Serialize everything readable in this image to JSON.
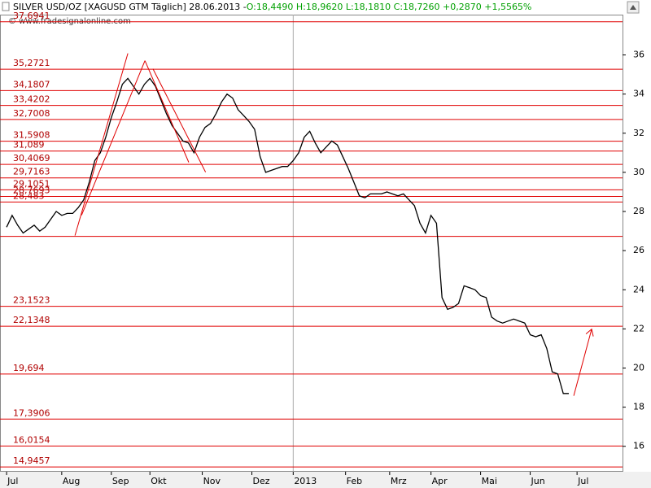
{
  "chart_data": {
    "type": "line",
    "title": "SILVER USD/OZ [XAGUSD GTM  Täglich] 28.06.2013 - ",
    "subtitle": "O:18,4490 H:18,9620 L:18,1810 C:18,7260 +0,2870 +1,5565%",
    "watermark": "© www.fradesignalonline.com",
    "color": "#000000",
    "level_color": "#e00000",
    "x": [
      0,
      2,
      4,
      6,
      8,
      10,
      12,
      14,
      16,
      18,
      20,
      22,
      24,
      26,
      28,
      30,
      32,
      34,
      36,
      38,
      40,
      42,
      44,
      46,
      48,
      50,
      52,
      54,
      56,
      58,
      60,
      62,
      64,
      66,
      68,
      70,
      72,
      74,
      76,
      78,
      80,
      82,
      84,
      86,
      88,
      90,
      92,
      94,
      96,
      98,
      100,
      102,
      104,
      106,
      108,
      110,
      112,
      114,
      116,
      118,
      120,
      122,
      124,
      126,
      128,
      130,
      132,
      134,
      136,
      138,
      140,
      142,
      144,
      146,
      148,
      150,
      152,
      154,
      156,
      158,
      160,
      162,
      164,
      166,
      168,
      170,
      172,
      174,
      176,
      178,
      180,
      182,
      184,
      186,
      188,
      190,
      192,
      194,
      196,
      198,
      200,
      202,
      204
    ],
    "values": [
      27.2,
      27.8,
      27.3,
      26.9,
      27.1,
      27.3,
      27.0,
      27.2,
      27.6,
      28.0,
      27.8,
      27.9,
      27.9,
      28.2,
      28.6,
      29.5,
      30.6,
      31.0,
      31.8,
      32.8,
      33.6,
      34.5,
      34.8,
      34.4,
      34.0,
      34.5,
      34.8,
      34.4,
      33.7,
      33.0,
      32.4,
      32.0,
      31.6,
      31.5,
      31.0,
      31.8,
      32.3,
      32.5,
      33.0,
      33.6,
      34.0,
      33.8,
      33.2,
      32.9,
      32.6,
      32.2,
      30.8,
      30.0,
      30.1,
      30.2,
      30.3,
      30.3,
      30.6,
      31.0,
      31.8,
      32.1,
      31.5,
      31.0,
      31.3,
      31.6,
      31.4,
      30.8,
      30.2,
      29.5,
      28.8,
      28.7,
      28.9,
      28.9,
      28.9,
      29.0,
      28.9,
      28.8,
      28.9,
      28.6,
      28.3,
      27.4,
      26.9,
      27.8,
      27.4,
      23.6,
      23.0,
      23.1,
      23.3,
      24.2,
      24.1,
      24.0,
      23.7,
      23.6,
      22.6,
      22.4,
      22.3,
      22.4,
      22.5,
      22.4,
      22.3,
      21.7,
      21.6,
      21.7,
      21.0,
      19.8,
      19.7,
      18.7,
      18.7
    ],
    "xlim": [
      -2.4,
      223.5
    ],
    "xticks": [
      {
        "value": 0,
        "label": "Jul"
      },
      {
        "value": 20,
        "label": "Aug"
      },
      {
        "value": 38,
        "label": "Sep"
      },
      {
        "value": 52,
        "label": "Okt"
      },
      {
        "value": 71,
        "label": "Nov"
      },
      {
        "value": 89,
        "label": "Dez"
      },
      {
        "value": 104,
        "label": "2013"
      },
      {
        "value": 123,
        "label": "Feb"
      },
      {
        "value": 139,
        "label": "Mrz"
      },
      {
        "value": 154,
        "label": "Apr"
      },
      {
        "value": 172,
        "label": "Mai"
      },
      {
        "value": 190,
        "label": "Jun"
      },
      {
        "value": 207,
        "label": "Jul"
      }
    ],
    "ylim": [
      14.7,
      38.6
    ],
    "yticks": [
      16,
      18,
      20,
      22,
      24,
      26,
      28,
      30,
      32,
      34,
      36
    ],
    "levels": [
      {
        "value": 37.6941,
        "label": "37,6941"
      },
      {
        "value": 35.2721,
        "label": "35,2721"
      },
      {
        "value": 34.1807,
        "label": "34,1807"
      },
      {
        "value": 33.4202,
        "label": "33,4202"
      },
      {
        "value": 32.7008,
        "label": "32,7008"
      },
      {
        "value": 31.5908,
        "label": "31,5908"
      },
      {
        "value": 31.089,
        "label": "31,089"
      },
      {
        "value": 30.4069,
        "label": "30,4069"
      },
      {
        "value": 29.7163,
        "label": "29,7163"
      },
      {
        "value": 29.1051,
        "label": "29,1051"
      },
      {
        "value": 28.7693,
        "label": "28,7693"
      },
      {
        "value": 28.483,
        "label": "28,483"
      },
      26.73,
      {
        "value": 23.1523,
        "label": "23,1523"
      },
      {
        "value": 22.1348,
        "label": "22,1348"
      },
      {
        "value": 19.694,
        "label": "19,694"
      },
      {
        "value": 17.3906,
        "label": "17,3906"
      },
      {
        "value": 16.0154,
        "label": "16,0154"
      },
      {
        "value": 14.9457,
        "label": "14,9457"
      }
    ],
    "trend_lines": [
      {
        "x": [
          24.8,
          44.0
        ],
        "values": [
          26.77,
          36.08
        ]
      },
      {
        "x": [
          27.2,
          50.2
        ],
        "values": [
          27.81,
          35.71
        ]
      },
      {
        "x": [
          50.2,
          66.1
        ],
        "values": [
          35.71,
          30.51
        ]
      },
      {
        "x": [
          53.1,
          72.2
        ],
        "values": [
          35.29,
          30.01
        ]
      },
      {
        "x": [
          205.8,
          212.3
        ],
        "values": [
          18.58,
          21.99
        ]
      }
    ]
  }
}
